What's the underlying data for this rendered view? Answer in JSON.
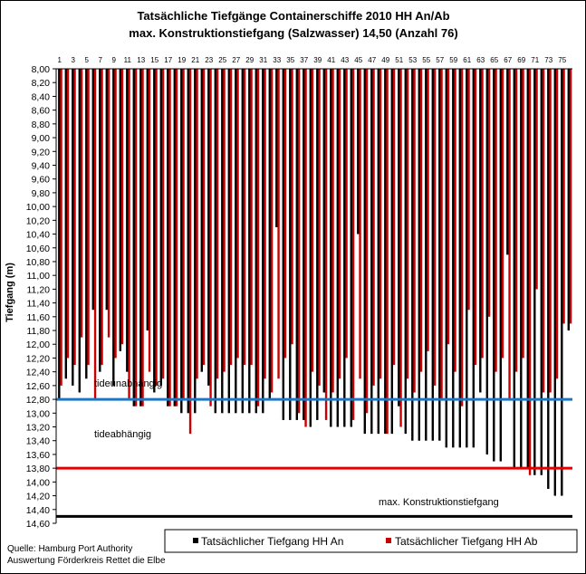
{
  "chart_data": {
    "type": "bar",
    "title_line1": "Tatsächliche Tiefgänge Containerschiffe 2010 HH An/Ab",
    "title_line2": "max. Konstruktionstiefgang (Salzwasser) 14,50 (Anzahl 76)",
    "ylabel": "Tiefgang (m)",
    "ylim": [
      8.0,
      14.6
    ],
    "y_inverted": true,
    "y_ticks": [
      "8,00",
      "8,20",
      "8,40",
      "8,60",
      "8,80",
      "9,00",
      "9,20",
      "9,40",
      "9,60",
      "9,80",
      "10,00",
      "10,20",
      "10,40",
      "10,60",
      "10,80",
      "11,00",
      "11,20",
      "11,40",
      "11,60",
      "11,80",
      "12,00",
      "12,20",
      "12,40",
      "12,60",
      "12,80",
      "13,00",
      "13,20",
      "13,40",
      "13,60",
      "13,80",
      "14,00",
      "14,20",
      "14,40",
      "14,60"
    ],
    "x_ticks": [
      "1",
      "3",
      "5",
      "7",
      "9",
      "11",
      "13",
      "15",
      "17",
      "19",
      "21",
      "23",
      "25",
      "27",
      "29",
      "31",
      "33",
      "35",
      "37",
      "39",
      "41",
      "43",
      "45",
      "47",
      "49",
      "51",
      "53",
      "55",
      "57",
      "59",
      "61",
      "63",
      "65",
      "67",
      "69",
      "71",
      "73",
      "75"
    ],
    "categories": [
      "1",
      "2",
      "3",
      "4",
      "5",
      "6",
      "7",
      "8",
      "9",
      "10",
      "11",
      "12",
      "13",
      "14",
      "15",
      "16",
      "17",
      "18",
      "19",
      "20",
      "21",
      "22",
      "23",
      "24",
      "25",
      "26",
      "27",
      "28",
      "29",
      "30",
      "31",
      "32",
      "33",
      "34",
      "35",
      "36",
      "37",
      "38",
      "39",
      "40",
      "41",
      "42",
      "43",
      "44",
      "45",
      "46",
      "47",
      "48",
      "49",
      "50",
      "51",
      "52",
      "53",
      "54",
      "55",
      "56",
      "57",
      "58",
      "59",
      "60",
      "61",
      "62",
      "63",
      "64",
      "65",
      "66",
      "67",
      "68",
      "69",
      "70",
      "71",
      "72",
      "73",
      "74",
      "75",
      "76"
    ],
    "series": [
      {
        "name": "Tatsächlicher Tiefgang HH An",
        "color": "#000000",
        "values": [
          12.8,
          12.5,
          12.6,
          12.7,
          12.5,
          11.5,
          12.4,
          11.5,
          12.6,
          12.1,
          12.4,
          12.9,
          12.9,
          11.8,
          12.7,
          12.6,
          12.9,
          12.9,
          13.0,
          13.0,
          13.0,
          12.4,
          12.6,
          13.0,
          13.0,
          13.0,
          13.0,
          13.0,
          13.0,
          13.0,
          13.0,
          12.8,
          10.3,
          13.1,
          13.1,
          13.1,
          13.1,
          13.2,
          13.1,
          12.7,
          13.2,
          13.2,
          13.2,
          13.2,
          10.4,
          13.3,
          13.3,
          13.3,
          13.3,
          13.3,
          12.9,
          13.3,
          13.4,
          13.4,
          13.4,
          13.4,
          13.4,
          13.5,
          13.5,
          13.5,
          13.5,
          13.5,
          12.7,
          13.6,
          13.7,
          13.7,
          10.7,
          13.8,
          13.8,
          13.8,
          13.9,
          13.9,
          14.1,
          14.2,
          14.2,
          11.8
        ]
      },
      {
        "name": "Tatsächlicher Tiefgang HH Ab",
        "color": "#cc0000",
        "values": [
          12.6,
          12.2,
          12.3,
          11.9,
          12.3,
          12.8,
          12.3,
          11.9,
          12.2,
          12.0,
          12.8,
          12.9,
          12.9,
          12.4,
          12.6,
          12.5,
          12.9,
          12.9,
          12.8,
          13.3,
          12.5,
          12.3,
          12.9,
          12.5,
          12.4,
          12.3,
          12.2,
          12.3,
          12.3,
          12.9,
          12.5,
          12.7,
          12.5,
          12.2,
          12.0,
          13.0,
          13.2,
          12.4,
          12.6,
          13.1,
          12.7,
          12.5,
          12.2,
          13.1,
          12.5,
          13.0,
          12.6,
          12.5,
          13.3,
          12.3,
          13.2,
          12.5,
          12.7,
          12.4,
          12.1,
          12.6,
          12.8,
          12.0,
          12.4,
          12.9,
          11.5,
          12.3,
          12.2,
          11.6,
          12.4,
          12.2,
          12.8,
          12.4,
          12.2,
          13.9,
          11.2,
          12.7,
          12.7,
          12.5,
          11.7,
          11.7
        ]
      }
    ],
    "reference_lines": [
      {
        "label": "tideunabhängig",
        "value": 12.8,
        "color": "#1f77c4"
      },
      {
        "label": "tideabhängig",
        "value": 13.8,
        "color": "#e00000"
      },
      {
        "label": "max. Konstruktionstiefgang",
        "value": 14.5,
        "color": "#000000"
      }
    ],
    "legend_position": "bottom-right",
    "grid": false
  },
  "source_line1": "Quelle: Hamburg Port Authority",
  "source_line2": "Auswertung Förderkreis Rettet die Elbe"
}
